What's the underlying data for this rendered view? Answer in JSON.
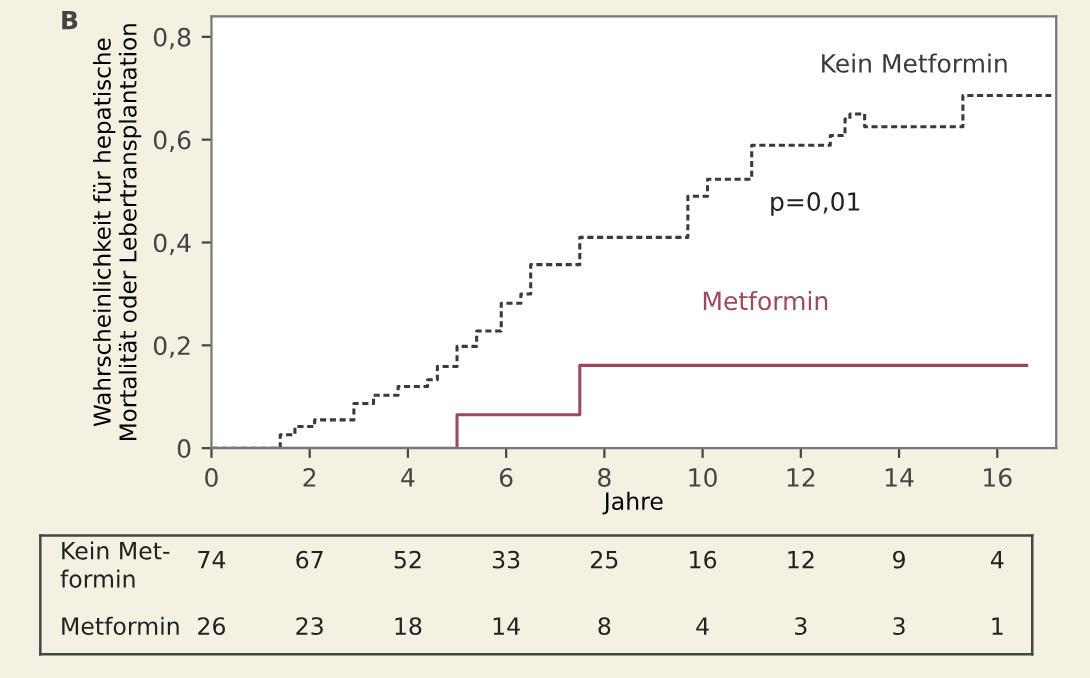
{
  "chart_data": {
    "type": "step",
    "xlabel": "Jahre",
    "ylabel": "Wahrscheinlichkeit für hepatische\nMortalität oder Lebertransplantation",
    "xlim": [
      0,
      17.2
    ],
    "ylim": [
      0,
      0.84
    ],
    "xticks": [
      0,
      2,
      4,
      6,
      8,
      10,
      12,
      14,
      16
    ],
    "yticks": [
      0,
      {
        "value": 0.2,
        "label": "0,2"
      },
      {
        "value": 0.4,
        "label": "0,4"
      },
      {
        "value": 0.6,
        "label": "0,6"
      },
      {
        "value": 0.8,
        "label": "0,8"
      }
    ],
    "grid": false,
    "legend": false,
    "marker": "none",
    "series": [
      {
        "name": "Kein Metformin",
        "color": "#3a3a3a",
        "line_style": "dotted",
        "x": [
          0,
          1.0,
          1.4,
          1.7,
          2.1,
          2.9,
          3.3,
          3.8,
          4.4,
          4.6,
          5.0,
          5.4,
          5.9,
          6.3,
          6.5,
          7.5,
          9.7,
          10.1,
          11.0,
          12.6,
          12.9,
          13.0,
          13.3,
          15.3,
          17.1
        ],
        "values": [
          0,
          0,
          0.026,
          0.042,
          0.055,
          0.087,
          0.103,
          0.12,
          0.133,
          0.159,
          0.198,
          0.228,
          0.282,
          0.3,
          0.357,
          0.41,
          0.49,
          0.523,
          0.589,
          0.608,
          0.64,
          0.65,
          0.625,
          0.686,
          0.686
        ]
      },
      {
        "name": "Metformin",
        "color": "#9a4a5a",
        "line_style": "solid",
        "x": [
          0,
          5.0,
          7.5,
          16.6
        ],
        "values": [
          0,
          0.065,
          0.161,
          0.161
        ]
      }
    ],
    "annotations": [
      "B",
      "p=0,01",
      "Kein Met-\nformin",
      "74",
      "67",
      "52",
      "33",
      "25",
      "16",
      "12",
      "9",
      "4",
      "Metformin",
      "26",
      "23",
      "18",
      "14",
      "8",
      "4",
      "3",
      "3",
      "1"
    ]
  }
}
